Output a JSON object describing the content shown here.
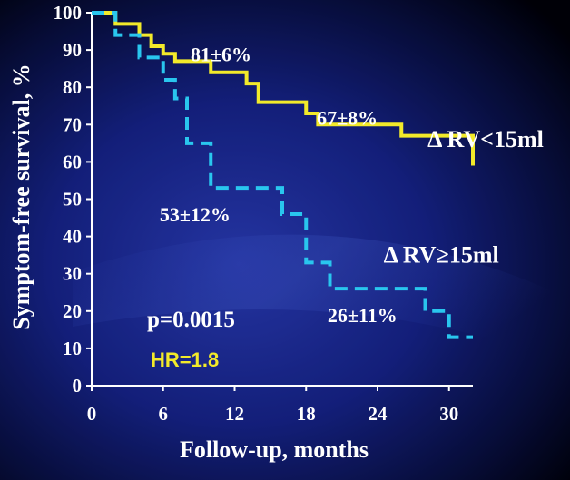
{
  "colors": {
    "background_dark": "#00000c",
    "background_mid": "#1a2a9a",
    "axis": "#ffffff",
    "text": "#ffffff",
    "series_1": "#f2ea2a",
    "series_2": "#29c6ee",
    "hr_text": "#f2ea2a"
  },
  "chart_data": {
    "type": "line",
    "step": true,
    "title": "",
    "xlabel": "Follow-up, months",
    "ylabel": "Symptom-free survival, %",
    "xlim": [
      0,
      32
    ],
    "ylim": [
      0,
      100
    ],
    "xticks": [
      0,
      6,
      12,
      18,
      24,
      30
    ],
    "yticks": [
      0,
      10,
      20,
      30,
      40,
      50,
      60,
      70,
      80,
      90,
      100
    ],
    "grid": false,
    "series": [
      {
        "name": "Δ RV<15ml",
        "color": "#f2ea2a",
        "dash": "solid",
        "x": [
          0,
          2,
          4,
          5,
          6,
          7,
          10,
          13,
          14,
          18,
          19,
          26,
          32
        ],
        "y": [
          100,
          97,
          94,
          91,
          89,
          87,
          84,
          81,
          76,
          73,
          70,
          67,
          59
        ]
      },
      {
        "name": "Δ RV≥15ml",
        "color": "#29c6ee",
        "dash": "dashed",
        "x": [
          0,
          2,
          4,
          6,
          7,
          8,
          10,
          16,
          18,
          20,
          28,
          30,
          32
        ],
        "y": [
          100,
          94,
          88,
          82,
          77,
          65,
          53,
          46,
          33,
          26,
          20,
          13,
          13
        ]
      }
    ],
    "annotations": [
      {
        "text": "81±6%",
        "x": 8.3,
        "y": 87
      },
      {
        "text": "67±8%",
        "x": 18.9,
        "y": 70
      },
      {
        "text": "53±12%",
        "x": 5.7,
        "y": 44
      },
      {
        "text": "26±11%",
        "x": 19.8,
        "y": 17
      }
    ],
    "series_labels": [
      {
        "text": "Δ RV<15ml",
        "x": 28.2,
        "y": 64
      },
      {
        "text": "Δ RV≥15ml",
        "x": 24.5,
        "y": 33
      }
    ],
    "p_value": "p=0.0015",
    "hr_value": "HR=1.8"
  }
}
